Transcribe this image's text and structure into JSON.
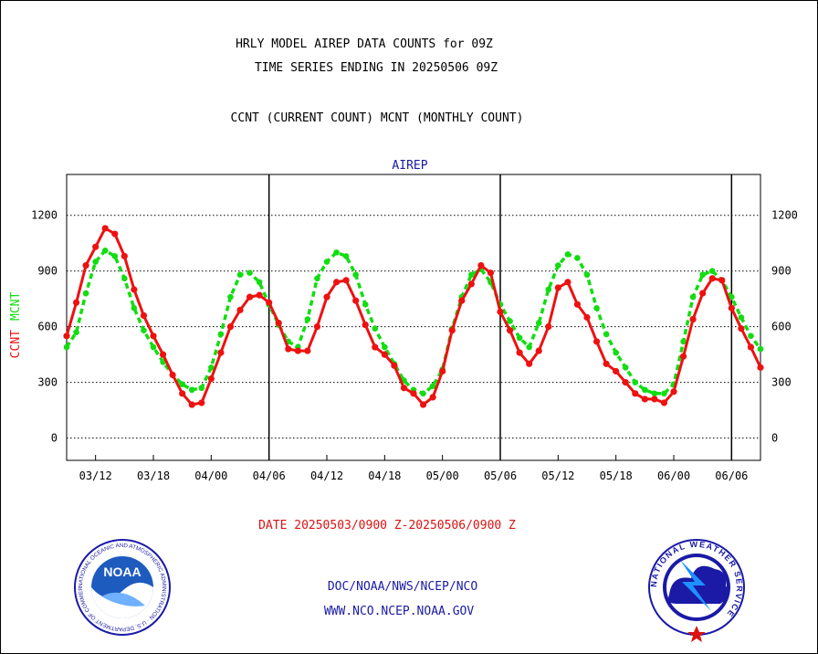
{
  "header": {
    "line1": "HRLY MODEL AIREP DATA COUNTS for 09Z",
    "line2": "TIME SERIES ENDING IN 20250506 09Z",
    "line3": "CCNT (CURRENT COUNT) MCNT (MONTHLY COUNT)"
  },
  "footer": {
    "date_range": "DATE 20250503/0900 Z-20250506/0900 Z",
    "org": "DOC/NOAA/NWS/NCEP/NCO",
    "url": "WWW.NCO.NCEP.NOAA.GOV"
  },
  "logos": {
    "left": "NOAA",
    "left_ring": "NATIONAL OCEANIC AND ATMOSPHERIC ADMINISTRATION · U.S. DEPARTMENT OF COMMERCE",
    "right_ring": "NATIONAL WEATHER SERVICE"
  },
  "colors": {
    "ccnt": "#ee1111",
    "mcnt": "#11dd11",
    "title_blue": "#1a1aa6",
    "footer_red": "#dd1111"
  },
  "chart_data": {
    "type": "line",
    "title": "AIREP",
    "ylabel_left": "CCNT",
    "ylabel_right": "MCNT",
    "ylim": [
      -120,
      1420
    ],
    "yticks": [
      0,
      300,
      600,
      900,
      1200
    ],
    "xticks": [
      "03/12",
      "03/18",
      "04/00",
      "04/06",
      "04/12",
      "04/18",
      "05/00",
      "05/06",
      "05/12",
      "05/18",
      "06/00",
      "06/06"
    ],
    "x_start_hour": 9,
    "x_end_hour": 81,
    "day_separators": [
      "04/06",
      "05/06",
      "06/06"
    ],
    "grid": "dotted horizontal at y ticks",
    "series": [
      {
        "name": "CCNT",
        "color": "#ee1111",
        "x": [
          9,
          10,
          11,
          12,
          13,
          14,
          15,
          16,
          17,
          18,
          19,
          20,
          21,
          22,
          23,
          24,
          25,
          26,
          27,
          28,
          29,
          30,
          31,
          32,
          33,
          34,
          35,
          36,
          37,
          38,
          39,
          40,
          41,
          42,
          43,
          44,
          45,
          46,
          47,
          48,
          49,
          50,
          51,
          52,
          53,
          54,
          55,
          56,
          57,
          58,
          59,
          60,
          61,
          62,
          63,
          64,
          65,
          66,
          67,
          68,
          69,
          70,
          71,
          72,
          73,
          74,
          75,
          76,
          77,
          78,
          79,
          80,
          81
        ],
        "values": [
          550,
          730,
          930,
          1030,
          1130,
          1100,
          980,
          800,
          660,
          550,
          450,
          340,
          240,
          180,
          190,
          320,
          460,
          600,
          690,
          760,
          770,
          730,
          620,
          480,
          470,
          470,
          600,
          760,
          840,
          850,
          740,
          610,
          490,
          450,
          390,
          270,
          240,
          180,
          220,
          360,
          580,
          740,
          830,
          930,
          890,
          680,
          580,
          460,
          400,
          470,
          600,
          810,
          840,
          720,
          650,
          520,
          400,
          360,
          300,
          240,
          210,
          210,
          190,
          250,
          440,
          640,
          780,
          860,
          850,
          700,
          590,
          490,
          380
        ]
      },
      {
        "name": "MCNT",
        "color": "#11dd11",
        "x": [
          9,
          10,
          11,
          12,
          13,
          14,
          15,
          16,
          17,
          18,
          19,
          20,
          21,
          22,
          23,
          24,
          25,
          26,
          27,
          28,
          29,
          30,
          31,
          32,
          33,
          34,
          35,
          36,
          37,
          38,
          39,
          40,
          41,
          42,
          43,
          44,
          45,
          46,
          47,
          48,
          49,
          50,
          51,
          52,
          53,
          54,
          55,
          56,
          57,
          58,
          59,
          60,
          61,
          62,
          63,
          64,
          65,
          66,
          67,
          68,
          69,
          70,
          71,
          72,
          73,
          74,
          75,
          76,
          77,
          78,
          79,
          80,
          81
        ],
        "values": [
          490,
          570,
          780,
          950,
          1010,
          980,
          860,
          700,
          580,
          490,
          410,
          340,
          290,
          260,
          270,
          380,
          560,
          760,
          880,
          890,
          840,
          720,
          610,
          520,
          490,
          640,
          860,
          950,
          1000,
          980,
          880,
          720,
          590,
          490,
          400,
          310,
          260,
          240,
          280,
          370,
          590,
          760,
          880,
          910,
          840,
          720,
          630,
          540,
          490,
          620,
          800,
          930,
          990,
          970,
          880,
          700,
          560,
          460,
          380,
          300,
          260,
          240,
          240,
          290,
          520,
          760,
          880,
          900,
          850,
          760,
          650,
          550,
          480
        ]
      }
    ]
  }
}
